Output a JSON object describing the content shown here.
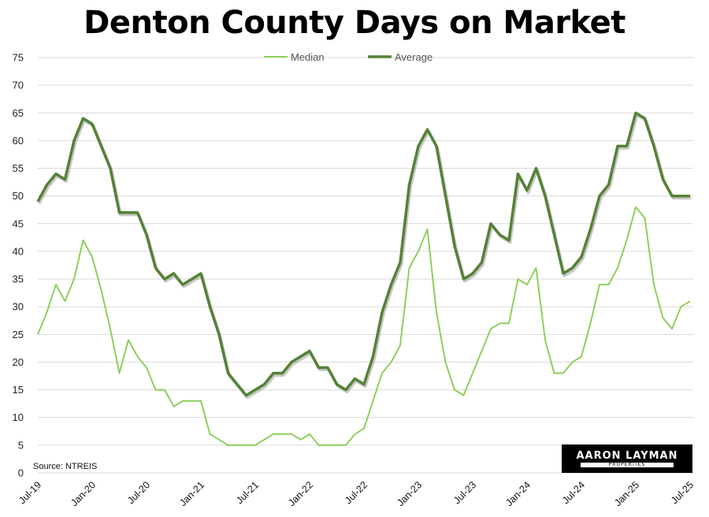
{
  "chart_data": {
    "type": "line",
    "title": "Denton County Days on Market",
    "xlabel": "",
    "ylabel": "",
    "ylim": [
      0,
      75
    ],
    "yticks": [
      0,
      5,
      10,
      15,
      20,
      25,
      30,
      35,
      40,
      45,
      50,
      55,
      60,
      65,
      70,
      75
    ],
    "x_tick_labels": [
      "Jul-19",
      "Jan-20",
      "Jul-20",
      "Jan-21",
      "Jul-21",
      "Jan-22",
      "Jul-22",
      "Jan-23",
      "Jul-23",
      "Jan-24",
      "Jul-24",
      "Jan-25",
      "Jul-25"
    ],
    "x_tick_every": 6,
    "grid": true,
    "legend_position": "top-center",
    "source_note": "Source: NTREIS",
    "categories": [
      "Jul-19",
      "Aug-19",
      "Sep-19",
      "Oct-19",
      "Nov-19",
      "Dec-19",
      "Jan-20",
      "Feb-20",
      "Mar-20",
      "Apr-20",
      "May-20",
      "Jun-20",
      "Jul-20",
      "Aug-20",
      "Sep-20",
      "Oct-20",
      "Nov-20",
      "Dec-20",
      "Jan-21",
      "Feb-21",
      "Mar-21",
      "Apr-21",
      "May-21",
      "Jun-21",
      "Jul-21",
      "Aug-21",
      "Sep-21",
      "Oct-21",
      "Nov-21",
      "Dec-21",
      "Jan-22",
      "Feb-22",
      "Mar-22",
      "Apr-22",
      "May-22",
      "Jun-22",
      "Jul-22",
      "Aug-22",
      "Sep-22",
      "Oct-22",
      "Nov-22",
      "Dec-22",
      "Jan-23",
      "Feb-23",
      "Mar-23",
      "Apr-23",
      "May-23",
      "Jun-23",
      "Jul-23",
      "Aug-23",
      "Sep-23",
      "Oct-23",
      "Nov-23",
      "Dec-23",
      "Jan-24",
      "Feb-24",
      "Mar-24",
      "Apr-24",
      "May-24",
      "Jun-24",
      "Jul-24",
      "Aug-24",
      "Sep-24",
      "Oct-24",
      "Nov-24",
      "Dec-24",
      "Jan-25",
      "Feb-25",
      "Mar-25",
      "Apr-25",
      "May-25",
      "Jun-25",
      "Jul-25"
    ],
    "series": [
      {
        "name": "Median",
        "color": "#8dcf5c",
        "values": [
          25,
          29,
          34,
          31,
          35,
          42,
          39,
          33,
          26,
          18,
          24,
          21,
          19,
          15,
          15,
          12,
          13,
          13,
          13,
          7,
          6,
          5,
          5,
          5,
          5,
          6,
          7,
          7,
          7,
          6,
          7,
          5,
          5,
          5,
          5,
          7,
          8,
          13,
          18,
          20,
          23,
          37,
          40,
          44,
          29,
          20,
          15,
          14,
          18,
          22,
          26,
          27,
          27,
          35,
          34,
          37,
          24,
          18,
          18,
          20,
          21,
          27,
          34,
          34,
          37,
          42,
          48,
          46,
          34,
          28,
          26,
          30,
          31
        ]
      },
      {
        "name": "Average",
        "color": "#548235",
        "values": [
          49,
          52,
          54,
          53,
          60,
          64,
          63,
          59,
          55,
          47,
          47,
          47,
          43,
          37,
          35,
          36,
          34,
          35,
          36,
          30,
          25,
          18,
          16,
          14,
          15,
          16,
          18,
          18,
          20,
          21,
          22,
          19,
          19,
          16,
          15,
          17,
          16,
          21,
          29,
          34,
          38,
          52,
          59,
          62,
          59,
          50,
          41,
          35,
          36,
          38,
          45,
          43,
          42,
          54,
          51,
          55,
          50,
          43,
          36,
          37,
          39,
          44,
          50,
          52,
          59,
          59,
          65,
          64,
          59,
          53,
          50,
          50,
          50
        ]
      }
    ]
  },
  "logo": {
    "name": "AARON LAYMAN",
    "tagline": "PROPERTIES"
  }
}
